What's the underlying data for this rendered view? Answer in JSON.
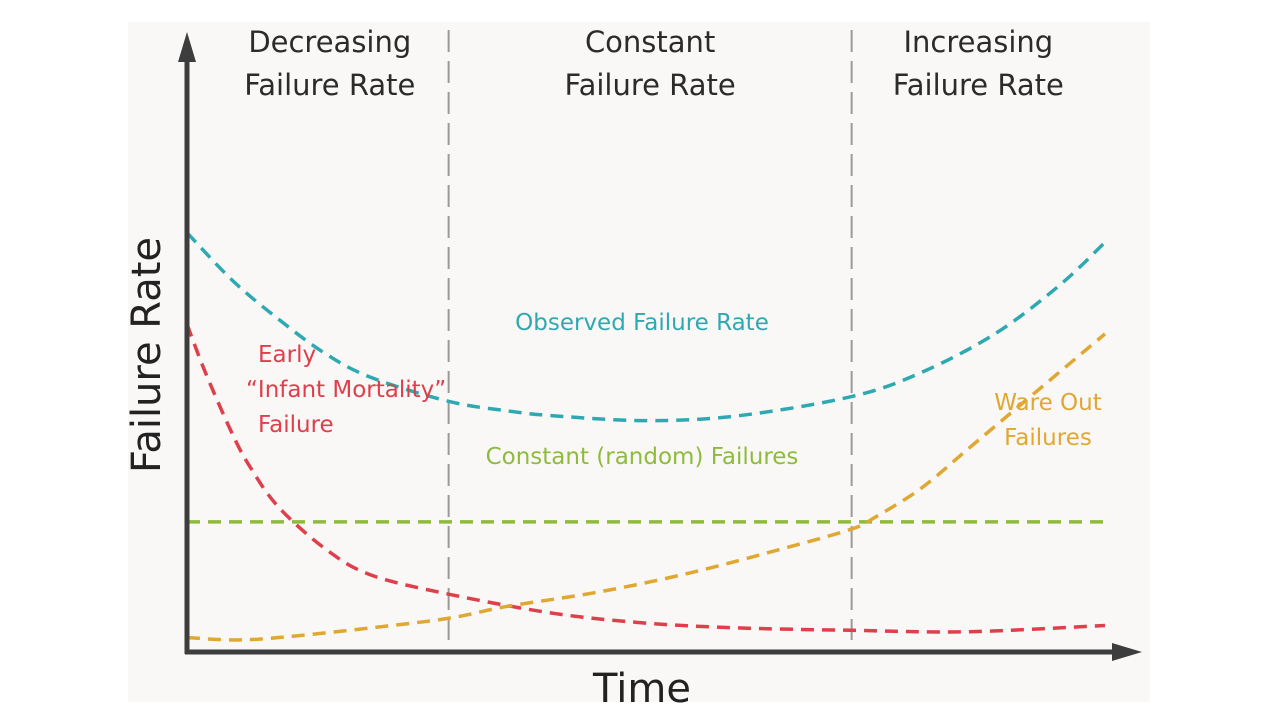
{
  "colors": {
    "panel": "#f9f8f6",
    "axis": "#3d3d3d",
    "divider": "#9a9a9a",
    "observed": "#2fa9b1",
    "infant": "#df3e4b",
    "random": "#8fbb3d",
    "wearout": "#e0a732"
  },
  "chart_data": {
    "type": "line",
    "xlabel": "Time",
    "ylabel": "Failure Rate",
    "xlim": [
      0,
      100
    ],
    "ylim": [
      0,
      100
    ],
    "ticks": "none",
    "grid": false,
    "regions": [
      {
        "label_line1": "Decreasing",
        "label_line2": "Failure Rate",
        "x_start": 0,
        "x_end": 28.5
      },
      {
        "label_line1": "Constant",
        "label_line2": "Failure Rate",
        "x_start": 28.5,
        "x_end": 72.4
      },
      {
        "label_line1": "Increasing",
        "label_line2": "Failure Rate",
        "x_start": 72.4,
        "x_end": 100
      }
    ],
    "series": [
      {
        "name": "Observed Failure Rate",
        "label_lines": [
          "Observed Failure Rate"
        ],
        "color_key": "observed",
        "style": "dashed",
        "x": [
          0,
          5,
          10,
          15,
          20,
          28.5,
          35,
          40,
          50,
          60,
          72.4,
          80,
          88,
          95,
          100
        ],
        "y": [
          87,
          77,
          69,
          62,
          57,
          52,
          50,
          49,
          48,
          49,
          53,
          58,
          66,
          76,
          85
        ]
      },
      {
        "name": "Early “Infant Mortality” Failure",
        "label_lines": [
          "Early",
          "“Infant Mortality”",
          "Failure"
        ],
        "color_key": "infant",
        "style": "dashed",
        "x": [
          0,
          2,
          5,
          7,
          10,
          15,
          20,
          28.5,
          40,
          50,
          60,
          72.4,
          85,
          100
        ],
        "y": [
          68,
          58,
          45,
          38,
          30,
          21.5,
          16,
          12,
          8,
          6,
          5,
          4.5,
          4.2,
          5.5
        ]
      },
      {
        "name": "Constant (random) Failures",
        "label_lines": [
          "Constant (random) Failures"
        ],
        "color_key": "random",
        "style": "dashed",
        "x": [
          0,
          100
        ],
        "y": [
          27,
          27
        ]
      },
      {
        "name": "Ware Out Failures",
        "label_lines": [
          "Ware Out",
          "Failures"
        ],
        "color_key": "wearout",
        "style": "dashed",
        "x": [
          0,
          5,
          10,
          20,
          28.5,
          35,
          45,
          55,
          65,
          72.4,
          75,
          80,
          85,
          90,
          95,
          100
        ],
        "y": [
          3,
          2.5,
          3,
          5,
          7,
          9.5,
          12.5,
          16.5,
          21.5,
          25.5,
          28,
          34,
          42,
          50,
          58,
          66
        ]
      }
    ]
  }
}
